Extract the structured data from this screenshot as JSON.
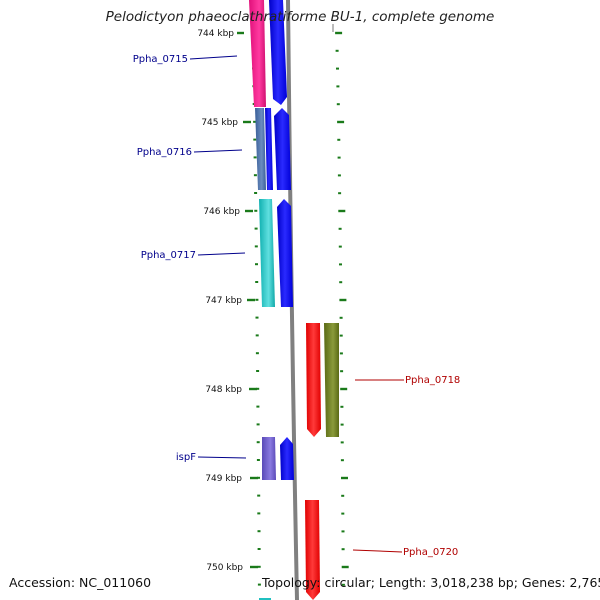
{
  "title": "Pelodictyon phaeoclathratiforme BU-1, complete genome",
  "accession_label": "Accession: NC_011060",
  "summary_label": "Topology: circular; Length: 3,018,238 bp; Genes: 2,765",
  "kbp_ticks": [
    {
      "label": "744 kbp",
      "kbp": 744
    },
    {
      "label": "745 kbp",
      "kbp": 745
    },
    {
      "label": "746 kbp",
      "kbp": 746
    },
    {
      "label": "747 kbp",
      "kbp": 747
    },
    {
      "label": "748 kbp",
      "kbp": 748
    },
    {
      "label": "749 kbp",
      "kbp": 749
    },
    {
      "label": "750 kbp",
      "kbp": 750
    }
  ],
  "gene_labels": [
    {
      "name": "Ppha_0715",
      "strand": "left",
      "color": "#00008b"
    },
    {
      "name": "Ppha_0716",
      "strand": "left",
      "color": "#00008b"
    },
    {
      "name": "Ppha_0717",
      "strand": "left",
      "color": "#00008b"
    },
    {
      "name": "ispF",
      "strand": "left",
      "color": "#00008b"
    },
    {
      "name": "Ppha_0718",
      "strand": "right",
      "color": "#b00000"
    },
    {
      "name": "Ppha_0720",
      "strand": "right",
      "color": "#b00000"
    }
  ],
  "colors": {
    "backbone": "#808080",
    "tick_green": "#1a7a1a",
    "gene_blue": "#0000ee",
    "gene_red": "#ff0000",
    "gene_olive": "#6b7a1f",
    "cog_pink": "#ff1493",
    "cog_steel": "#4a6fa8",
    "cog_cyan": "#20c0c0",
    "cog_purple": "#6a5acd"
  }
}
